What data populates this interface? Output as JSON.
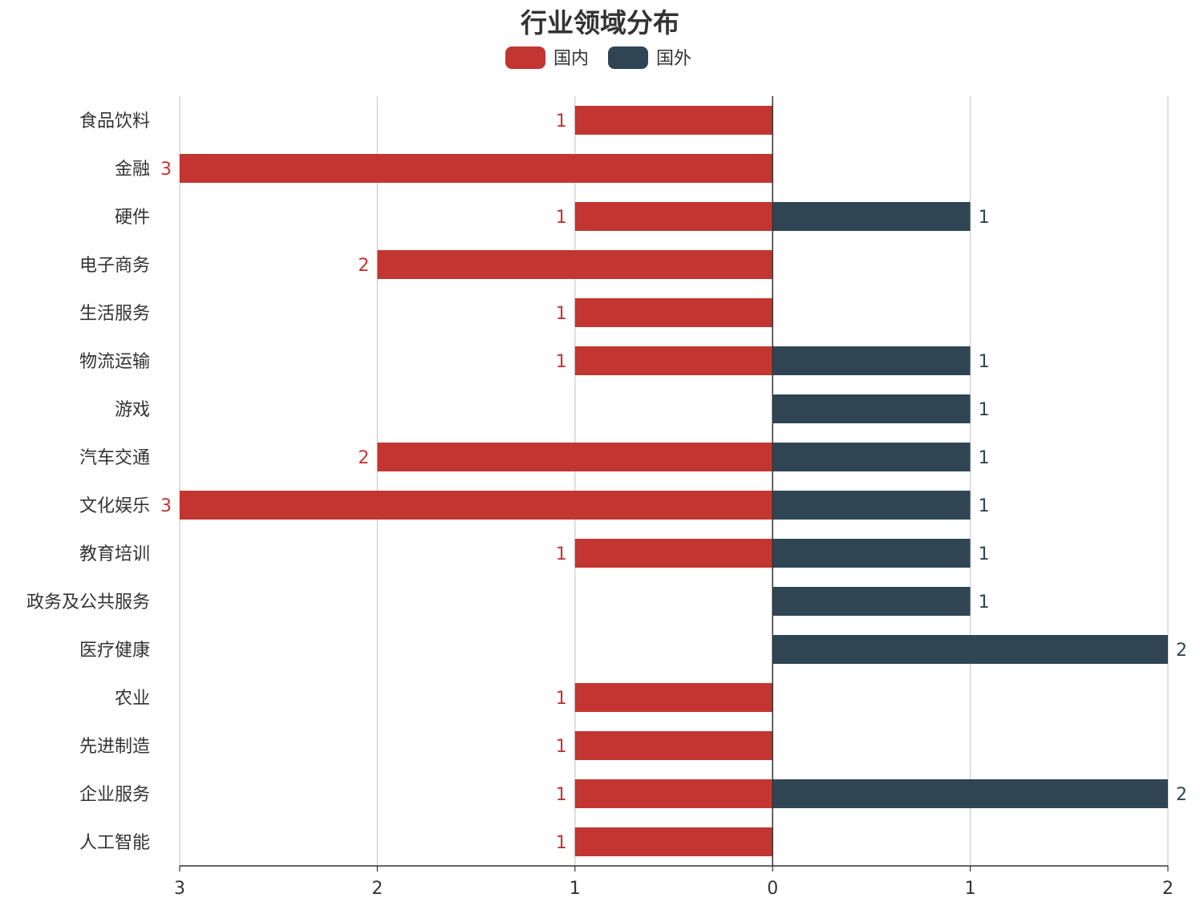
{
  "chart_data": {
    "type": "bar",
    "orientation": "horizontal-diverging",
    "title": "行业领域分布",
    "legend_position": "top-center",
    "grid": true,
    "categories": [
      "食品饮料",
      "金融",
      "硬件",
      "电子商务",
      "生活服务",
      "物流运输",
      "游戏",
      "汽车交通",
      "文化娱乐",
      "教育培训",
      "政务及公共服务",
      "医疗健康",
      "农业",
      "先进制造",
      "企业服务",
      "人工智能"
    ],
    "series": [
      {
        "name": "国内",
        "color": "#c23531",
        "side": "left",
        "values": [
          1,
          3,
          1,
          2,
          1,
          1,
          null,
          2,
          3,
          1,
          null,
          null,
          1,
          1,
          1,
          1
        ]
      },
      {
        "name": "国外",
        "color": "#2f4554",
        "side": "right",
        "values": [
          null,
          null,
          1,
          null,
          null,
          1,
          1,
          1,
          1,
          1,
          1,
          2,
          null,
          null,
          2,
          null
        ]
      }
    ],
    "xlim": [
      -3,
      2
    ],
    "x_ticks": [
      -3,
      -2,
      -1,
      0,
      1,
      2
    ],
    "x_tick_labels": [
      "3",
      "2",
      "1",
      "0",
      "1",
      "2"
    ]
  }
}
